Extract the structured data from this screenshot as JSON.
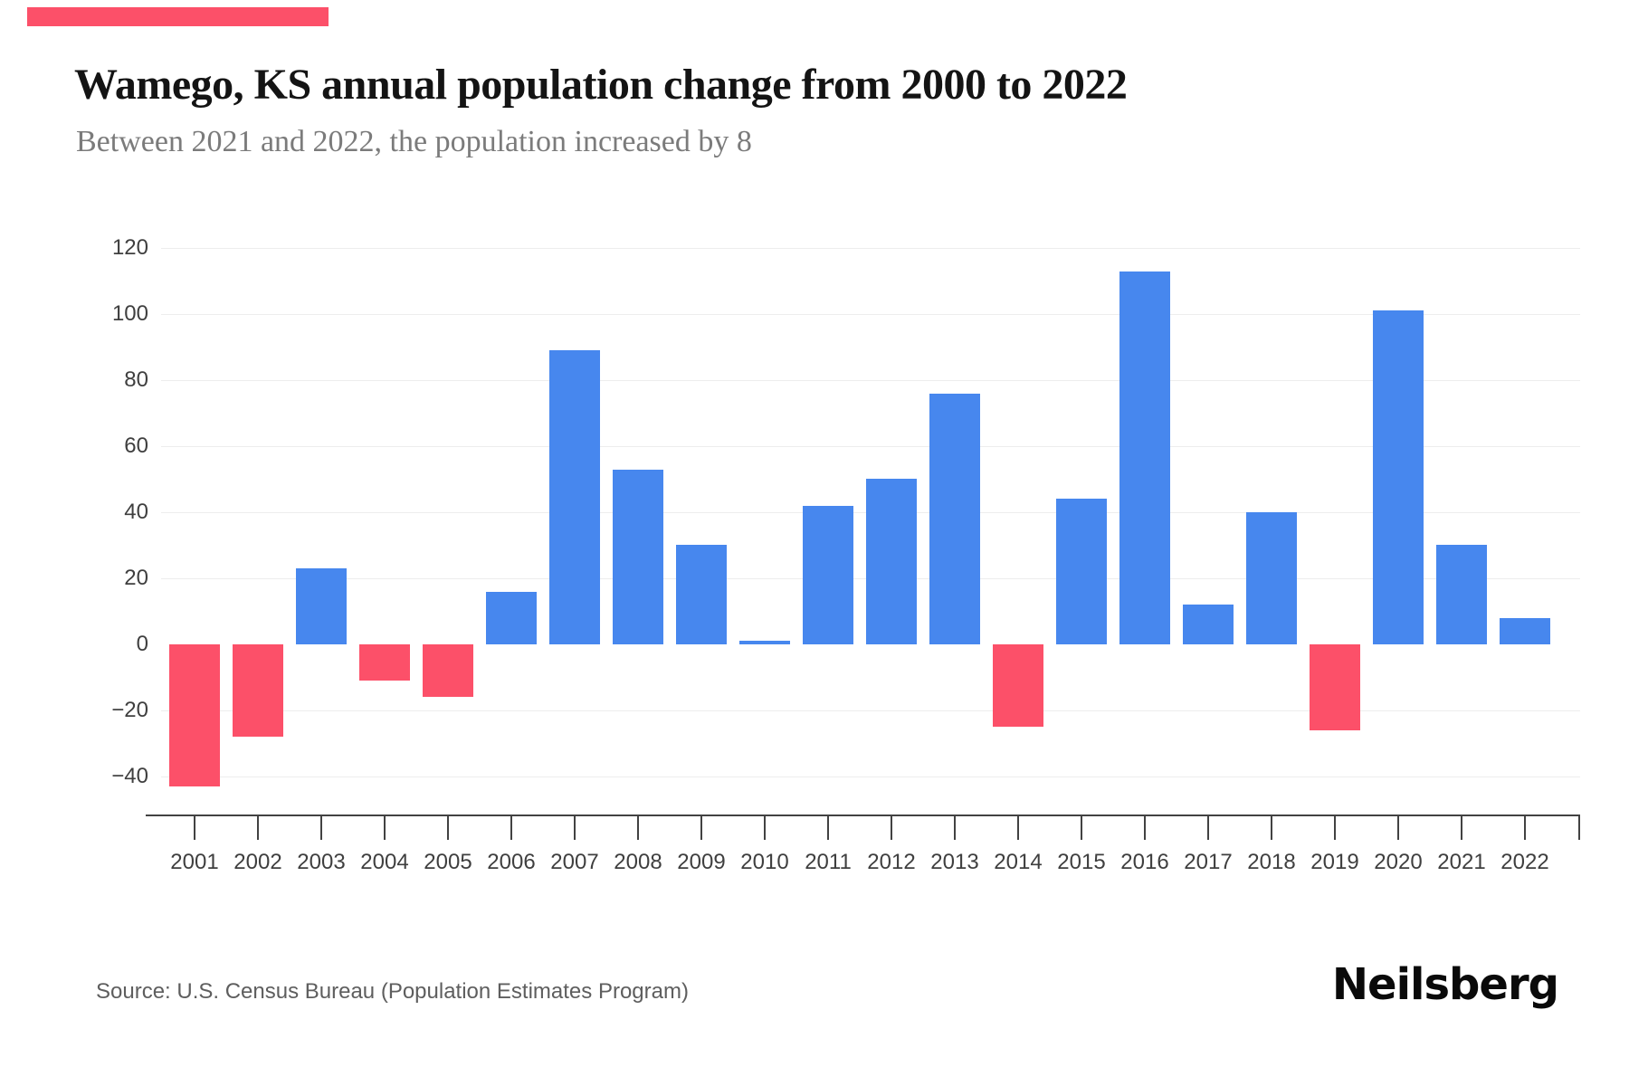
{
  "accent_bar": {
    "color": "#FC5069"
  },
  "header": {
    "title": "Wamego, KS annual population change from 2000 to 2022",
    "subtitle": "Between 2021 and 2022, the population increased by 8"
  },
  "chart_data": {
    "type": "bar",
    "title": "Wamego, KS annual population change from 2000 to 2022",
    "categories": [
      "2001",
      "2002",
      "2003",
      "2004",
      "2005",
      "2006",
      "2007",
      "2008",
      "2009",
      "2010",
      "2011",
      "2012",
      "2013",
      "2014",
      "2015",
      "2016",
      "2017",
      "2018",
      "2019",
      "2020",
      "2021",
      "2022"
    ],
    "values": [
      -43,
      -28,
      23,
      -11,
      -16,
      16,
      89,
      53,
      30,
      1,
      42,
      50,
      76,
      -25,
      44,
      113,
      12,
      40,
      -26,
      101,
      30,
      8
    ],
    "xlabel": "",
    "ylabel": "",
    "yticks": [
      120,
      100,
      80,
      60,
      40,
      20,
      0,
      -20,
      -40
    ],
    "ytick_labels": [
      "120",
      "100",
      "80",
      "60",
      "40",
      "20",
      "0",
      "−20",
      "−40"
    ],
    "ylim": [
      -52,
      130
    ],
    "grid": true,
    "legend": false,
    "positive_color": "#4787EE",
    "negative_color": "#FC5069"
  },
  "footer": {
    "source": "Source: U.S. Census Bureau (Population Estimates Program)",
    "brand": "Neilsberg"
  }
}
